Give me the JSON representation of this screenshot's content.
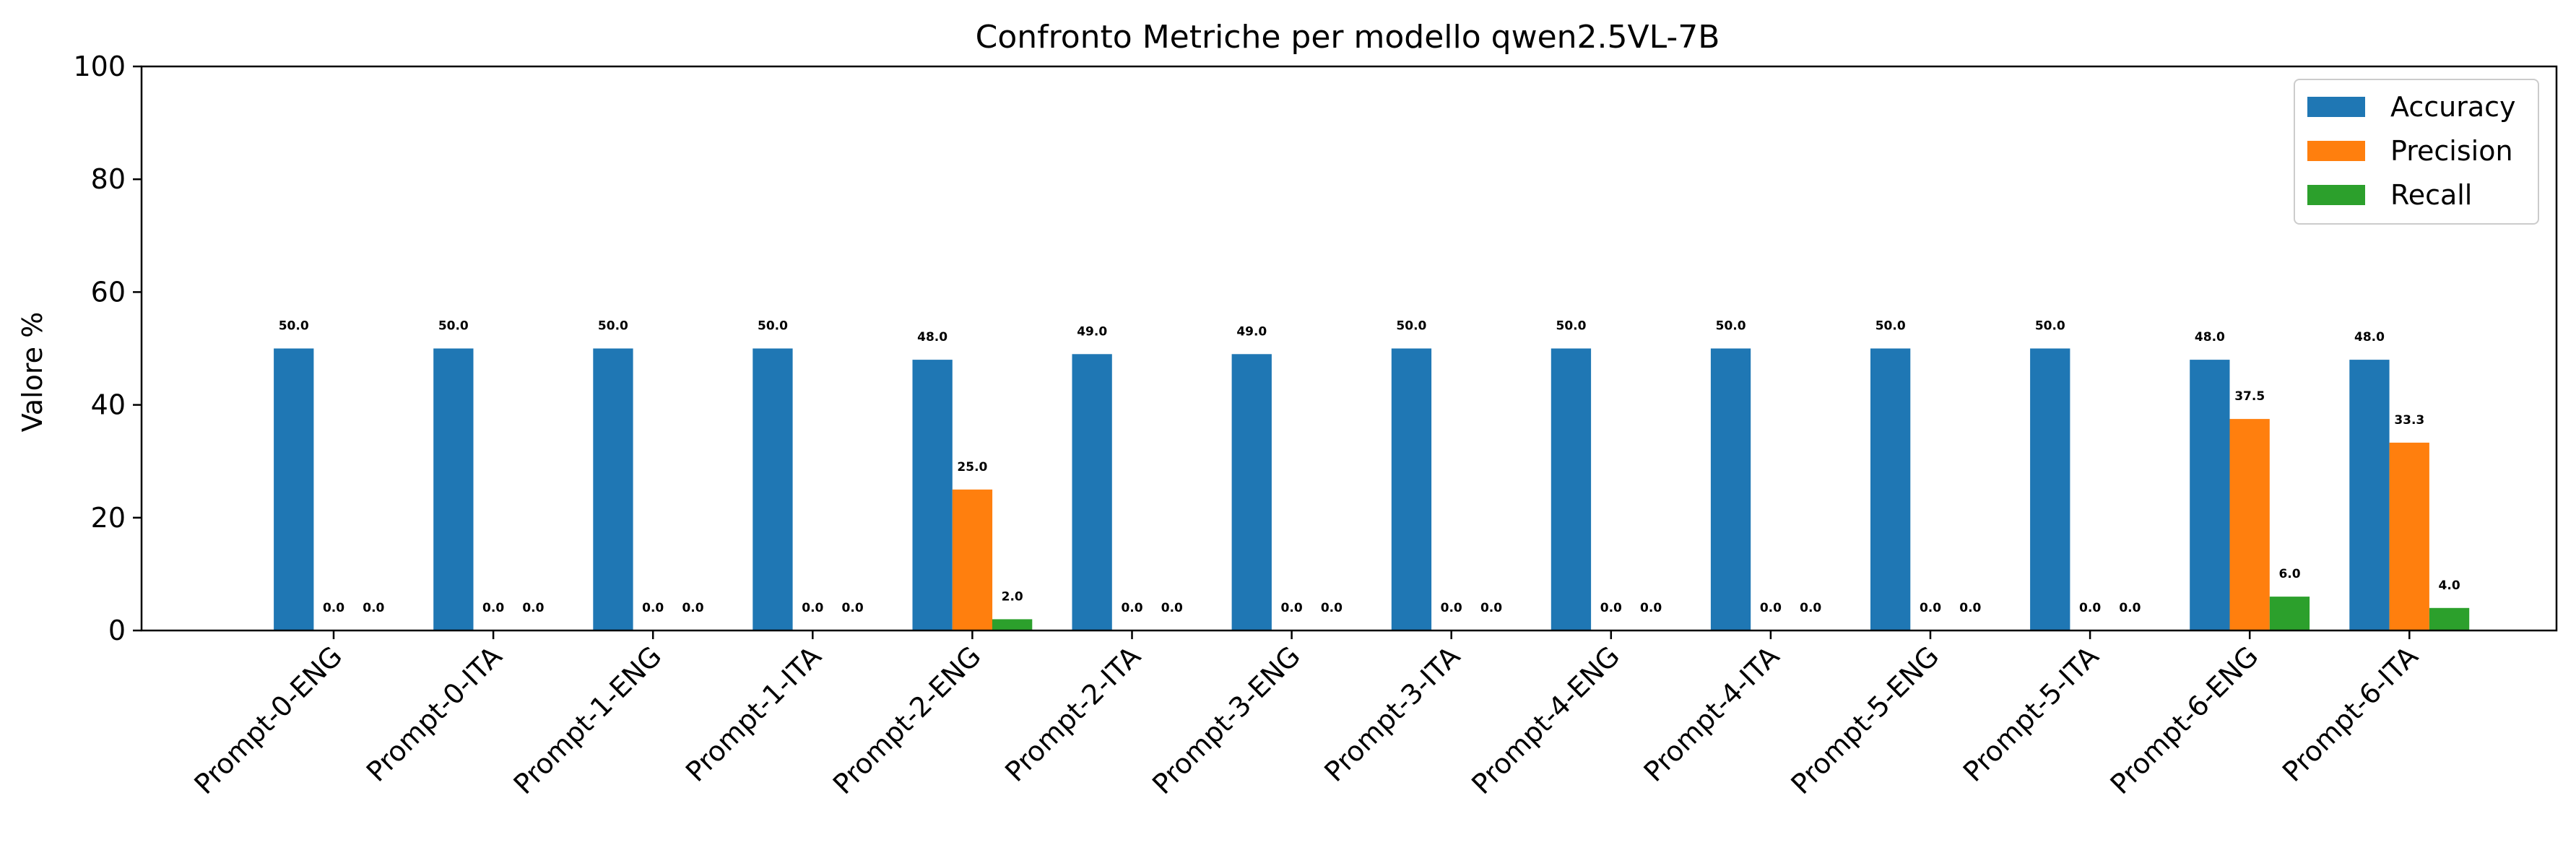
{
  "chart_data": {
    "type": "bar",
    "title": "Confronto Metriche per modello qwen2.5VL-7B",
    "xlabel": "",
    "ylabel": "Valore %",
    "ylim": [
      0,
      100
    ],
    "yticks": [
      "0",
      "20",
      "40",
      "60",
      "80",
      "100"
    ],
    "categories": [
      "Prompt-0-ENG",
      "Prompt-0-ITA",
      "Prompt-1-ENG",
      "Prompt-1-ITA",
      "Prompt-2-ENG",
      "Prompt-2-ITA",
      "Prompt-3-ENG",
      "Prompt-3-ITA",
      "Prompt-4-ENG",
      "Prompt-4-ITA",
      "Prompt-5-ENG",
      "Prompt-5-ITA",
      "Prompt-6-ENG",
      "Prompt-6-ITA"
    ],
    "series": [
      {
        "name": "Accuracy",
        "color": "#1f77b4",
        "values": [
          50.0,
          50.0,
          50.0,
          50.0,
          48.0,
          49.0,
          49.0,
          50.0,
          50.0,
          50.0,
          50.0,
          50.0,
          48.0,
          48.0
        ]
      },
      {
        "name": "Precision",
        "color": "#ff7f0e",
        "values": [
          0.0,
          0.0,
          0.0,
          0.0,
          25.0,
          0.0,
          0.0,
          0.0,
          0.0,
          0.0,
          0.0,
          0.0,
          37.5,
          33.3
        ]
      },
      {
        "name": "Recall",
        "color": "#2ca02c",
        "values": [
          0.0,
          0.0,
          0.0,
          0.0,
          2.0,
          0.0,
          0.0,
          0.0,
          0.0,
          0.0,
          0.0,
          0.0,
          6.0,
          4.0
        ]
      }
    ],
    "legend_position": "top-right",
    "grid": false
  }
}
